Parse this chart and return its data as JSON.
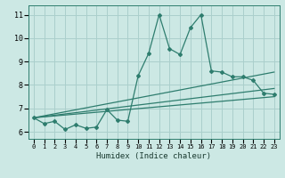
{
  "xlabel": "Humidex (Indice chaleur)",
  "bg_color": "#cce8e4",
  "grid_color": "#aacfcc",
  "line_color": "#2e7d6e",
  "xlim": [
    -0.5,
    23.5
  ],
  "ylim": [
    5.7,
    11.4
  ],
  "xticks": [
    0,
    1,
    2,
    3,
    4,
    5,
    6,
    7,
    8,
    9,
    10,
    11,
    12,
    13,
    14,
    15,
    16,
    17,
    18,
    19,
    20,
    21,
    22,
    23
  ],
  "yticks": [
    6,
    7,
    8,
    9,
    10,
    11
  ],
  "main_x": [
    0,
    1,
    2,
    3,
    4,
    5,
    6,
    7,
    8,
    9,
    10,
    11,
    12,
    13,
    14,
    15,
    16,
    17,
    18,
    19,
    20,
    21,
    22,
    23
  ],
  "main_y": [
    6.6,
    6.35,
    6.45,
    6.1,
    6.3,
    6.15,
    6.2,
    6.95,
    6.5,
    6.45,
    8.4,
    9.35,
    11.0,
    9.55,
    9.3,
    10.45,
    11.0,
    8.6,
    8.55,
    8.35,
    8.35,
    8.2,
    7.65,
    7.6
  ],
  "line1_x": [
    0,
    23
  ],
  "line1_y": [
    6.6,
    8.55
  ],
  "line2_x": [
    0,
    23
  ],
  "line2_y": [
    6.6,
    7.85
  ],
  "line3_x": [
    0,
    23
  ],
  "line3_y": [
    6.6,
    7.5
  ]
}
